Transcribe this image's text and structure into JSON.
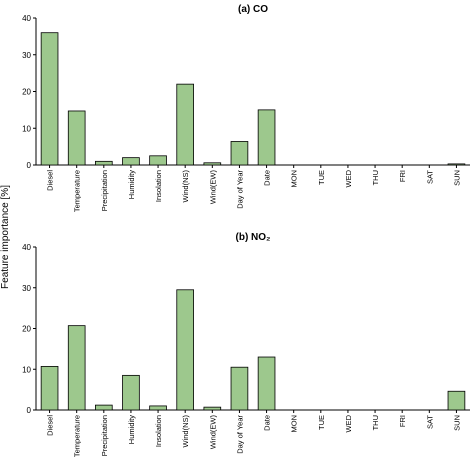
{
  "chart_data": {
    "type": "bar",
    "ylabel": "Feature importance [%]",
    "bar_color": "#9dc88d",
    "bar_edge_color": "#000000",
    "categories": [
      "Diesel",
      "Temperature",
      "Precipitation",
      "Humidity",
      "Insolation",
      "Wind(NS)",
      "Wind(EW)",
      "Day of Year",
      "Date",
      "MON",
      "TUE",
      "WED",
      "THU",
      "FRI",
      "SAT",
      "SUN"
    ],
    "panels": [
      {
        "title": "(a) CO",
        "ylim": [
          0,
          40
        ],
        "yticks": [
          0,
          10,
          20,
          30,
          40
        ],
        "values": [
          36,
          14.7,
          1.0,
          2.0,
          2.5,
          22,
          0.6,
          6.4,
          15.0,
          0,
          0,
          0,
          0,
          0,
          0,
          0.3
        ]
      },
      {
        "title": "(b) NO₂",
        "ylim": [
          0,
          40
        ],
        "yticks": [
          0,
          10,
          20,
          30,
          40
        ],
        "values": [
          10.7,
          20.7,
          1.2,
          8.5,
          1.0,
          29.5,
          0.7,
          10.5,
          13.0,
          0,
          0,
          0,
          0,
          0,
          0,
          4.6
        ]
      }
    ]
  }
}
